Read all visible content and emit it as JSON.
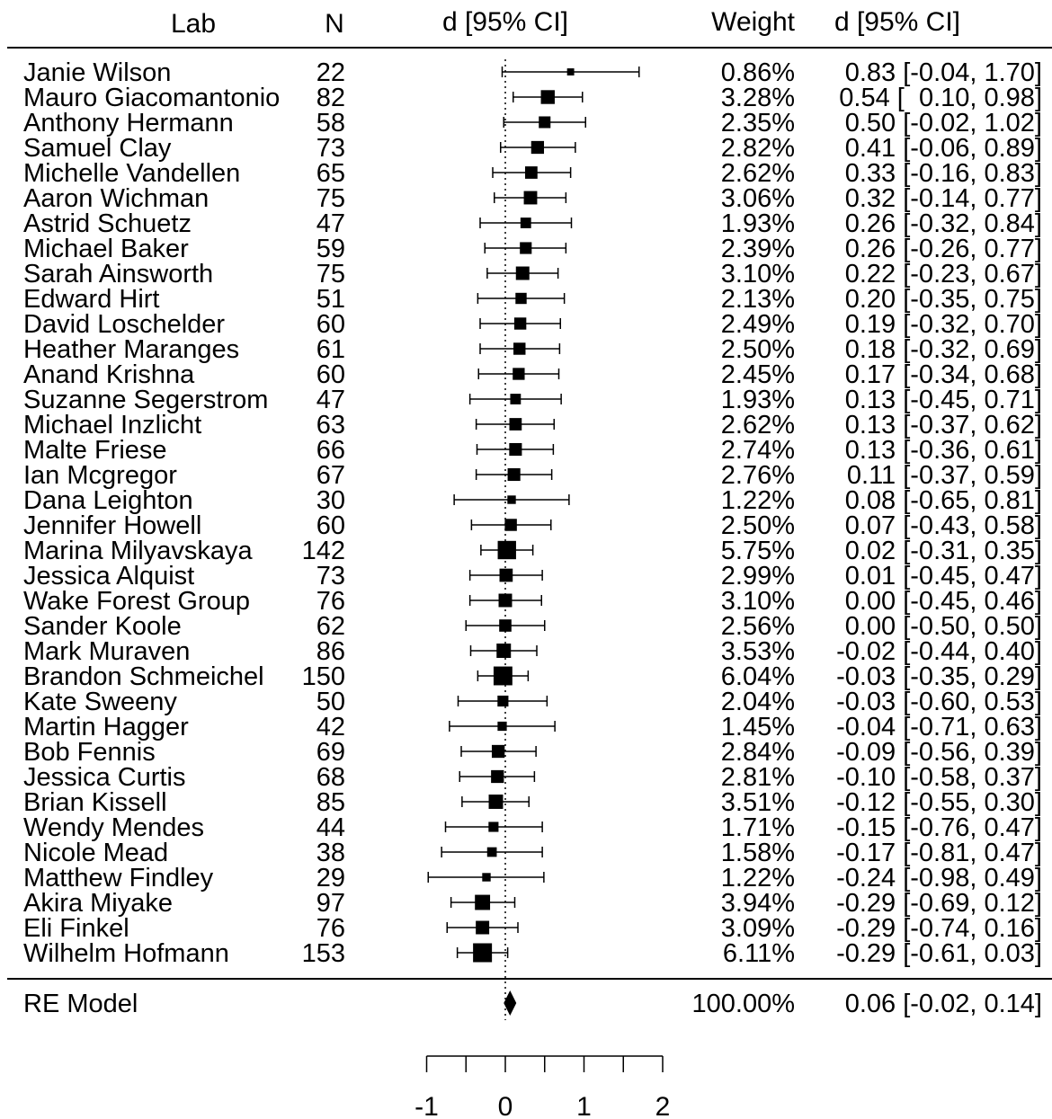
{
  "chart_data": {
    "type": "forest",
    "headers": {
      "lab": "Lab",
      "n": "N",
      "ci": "d [95% CI]",
      "weight": "Weight",
      "estimate": "d [95% CI]"
    },
    "studies": [
      {
        "lab": "Janie Wilson",
        "n": "22",
        "d": 0.83,
        "lo": -0.04,
        "hi": 1.7,
        "weight": "0.86%",
        "w": 0.86
      },
      {
        "lab": "Mauro Giacomantonio",
        "n": "82",
        "d": 0.54,
        "lo": 0.1,
        "hi": 0.98,
        "weight": "3.28%",
        "w": 3.28
      },
      {
        "lab": "Anthony Hermann",
        "n": "58",
        "d": 0.5,
        "lo": -0.02,
        "hi": 1.02,
        "weight": "2.35%",
        "w": 2.35
      },
      {
        "lab": "Samuel Clay",
        "n": "73",
        "d": 0.41,
        "lo": -0.06,
        "hi": 0.89,
        "weight": "2.82%",
        "w": 2.82
      },
      {
        "lab": "Michelle Vandellen",
        "n": "65",
        "d": 0.33,
        "lo": -0.16,
        "hi": 0.83,
        "weight": "2.62%",
        "w": 2.62
      },
      {
        "lab": "Aaron Wichman",
        "n": "75",
        "d": 0.32,
        "lo": -0.14,
        "hi": 0.77,
        "weight": "3.06%",
        "w": 3.06
      },
      {
        "lab": "Astrid Schuetz",
        "n": "47",
        "d": 0.26,
        "lo": -0.32,
        "hi": 0.84,
        "weight": "1.93%",
        "w": 1.93
      },
      {
        "lab": "Michael Baker",
        "n": "59",
        "d": 0.26,
        "lo": -0.26,
        "hi": 0.77,
        "weight": "2.39%",
        "w": 2.39
      },
      {
        "lab": "Sarah Ainsworth",
        "n": "75",
        "d": 0.22,
        "lo": -0.23,
        "hi": 0.67,
        "weight": "3.10%",
        "w": 3.1
      },
      {
        "lab": "Edward Hirt",
        "n": "51",
        "d": 0.2,
        "lo": -0.35,
        "hi": 0.75,
        "weight": "2.13%",
        "w": 2.13
      },
      {
        "lab": "David Loschelder",
        "n": "60",
        "d": 0.19,
        "lo": -0.32,
        "hi": 0.7,
        "weight": "2.49%",
        "w": 2.49
      },
      {
        "lab": "Heather Maranges",
        "n": "61",
        "d": 0.18,
        "lo": -0.32,
        "hi": 0.69,
        "weight": "2.50%",
        "w": 2.5
      },
      {
        "lab": "Anand Krishna",
        "n": "60",
        "d": 0.17,
        "lo": -0.34,
        "hi": 0.68,
        "weight": "2.45%",
        "w": 2.45
      },
      {
        "lab": "Suzanne Segerstrom",
        "n": "47",
        "d": 0.13,
        "lo": -0.45,
        "hi": 0.71,
        "weight": "1.93%",
        "w": 1.93
      },
      {
        "lab": "Michael Inzlicht",
        "n": "63",
        "d": 0.13,
        "lo": -0.37,
        "hi": 0.62,
        "weight": "2.62%",
        "w": 2.62
      },
      {
        "lab": "Malte Friese",
        "n": "66",
        "d": 0.13,
        "lo": -0.36,
        "hi": 0.61,
        "weight": "2.74%",
        "w": 2.74
      },
      {
        "lab": "Ian Mcgregor",
        "n": "67",
        "d": 0.11,
        "lo": -0.37,
        "hi": 0.59,
        "weight": "2.76%",
        "w": 2.76
      },
      {
        "lab": "Dana Leighton",
        "n": "30",
        "d": 0.08,
        "lo": -0.65,
        "hi": 0.81,
        "weight": "1.22%",
        "w": 1.22
      },
      {
        "lab": "Jennifer Howell",
        "n": "60",
        "d": 0.07,
        "lo": -0.43,
        "hi": 0.58,
        "weight": "2.50%",
        "w": 2.5
      },
      {
        "lab": "Marina Milyavskaya",
        "n": "142",
        "d": 0.02,
        "lo": -0.31,
        "hi": 0.35,
        "weight": "5.75%",
        "w": 5.75
      },
      {
        "lab": "Jessica Alquist",
        "n": "73",
        "d": 0.01,
        "lo": -0.45,
        "hi": 0.47,
        "weight": "2.99%",
        "w": 2.99
      },
      {
        "lab": "Wake Forest Group",
        "n": "76",
        "d": 0.0,
        "lo": -0.45,
        "hi": 0.46,
        "weight": "3.10%",
        "w": 3.1
      },
      {
        "lab": "Sander Koole",
        "n": "62",
        "d": 0.0,
        "lo": -0.5,
        "hi": 0.5,
        "weight": "2.56%",
        "w": 2.56
      },
      {
        "lab": "Mark Muraven",
        "n": "86",
        "d": -0.02,
        "lo": -0.44,
        "hi": 0.4,
        "weight": "3.53%",
        "w": 3.53
      },
      {
        "lab": "Brandon Schmeichel",
        "n": "150",
        "d": -0.03,
        "lo": -0.35,
        "hi": 0.29,
        "weight": "6.04%",
        "w": 6.04
      },
      {
        "lab": "Kate Sweeny",
        "n": "50",
        "d": -0.03,
        "lo": -0.6,
        "hi": 0.53,
        "weight": "2.04%",
        "w": 2.04
      },
      {
        "lab": "Martin Hagger",
        "n": "42",
        "d": -0.04,
        "lo": -0.71,
        "hi": 0.63,
        "weight": "1.45%",
        "w": 1.45
      },
      {
        "lab": "Bob Fennis",
        "n": "69",
        "d": -0.09,
        "lo": -0.56,
        "hi": 0.39,
        "weight": "2.84%",
        "w": 2.84
      },
      {
        "lab": "Jessica Curtis",
        "n": "68",
        "d": -0.1,
        "lo": -0.58,
        "hi": 0.37,
        "weight": "2.81%",
        "w": 2.81
      },
      {
        "lab": "Brian Kissell",
        "n": "85",
        "d": -0.12,
        "lo": -0.55,
        "hi": 0.3,
        "weight": "3.51%",
        "w": 3.51
      },
      {
        "lab": "Wendy Mendes",
        "n": "44",
        "d": -0.15,
        "lo": -0.76,
        "hi": 0.47,
        "weight": "1.71%",
        "w": 1.71
      },
      {
        "lab": "Nicole Mead",
        "n": "38",
        "d": -0.17,
        "lo": -0.81,
        "hi": 0.47,
        "weight": "1.58%",
        "w": 1.58
      },
      {
        "lab": "Matthew Findley",
        "n": "29",
        "d": -0.24,
        "lo": -0.98,
        "hi": 0.49,
        "weight": "1.22%",
        "w": 1.22
      },
      {
        "lab": "Akira Miyake",
        "n": "97",
        "d": -0.29,
        "lo": -0.69,
        "hi": 0.12,
        "weight": "3.94%",
        "w": 3.94
      },
      {
        "lab": "Eli Finkel",
        "n": "76",
        "d": -0.29,
        "lo": -0.74,
        "hi": 0.16,
        "weight": "3.09%",
        "w": 3.09
      },
      {
        "lab": "Wilhelm Hofmann",
        "n": "153",
        "d": -0.29,
        "lo": -0.61,
        "hi": 0.03,
        "weight": "6.11%",
        "w": 6.11
      }
    ],
    "summary": {
      "label": "RE Model",
      "d": 0.06,
      "lo": -0.02,
      "hi": 0.14,
      "weight": "100.00%"
    },
    "x_axis": {
      "ticks": [
        -1,
        0,
        1,
        2
      ],
      "minor_step": 0.5,
      "range": [
        -1,
        2
      ],
      "reference_line": 0
    }
  }
}
